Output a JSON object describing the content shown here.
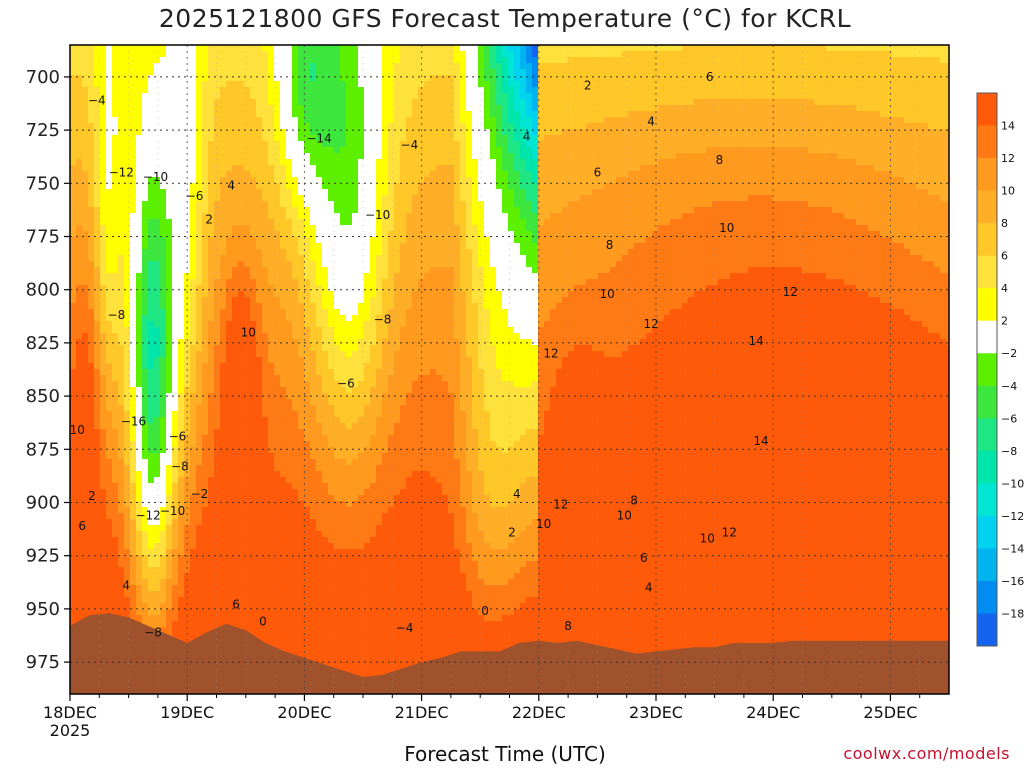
{
  "chart_data": {
    "type": "heatmap",
    "title": "2025121800 GFS Forecast Temperature (°C) for KCRL",
    "xlabel": "Forecast Time (UTC)",
    "ylabel": "",
    "credit": "coolwx.com/models",
    "x_ticks": [
      "18DEC",
      "19DEC",
      "20DEC",
      "21DEC",
      "22DEC",
      "23DEC",
      "24DEC",
      "25DEC"
    ],
    "x_sub_label": "2025",
    "xlim_hours": [
      0,
      180
    ],
    "y_ticks": [
      700,
      725,
      750,
      775,
      800,
      825,
      850,
      875,
      900,
      925,
      950,
      975
    ],
    "ylim_hpa": [
      685,
      990
    ],
    "colorbar_ticks": [
      14,
      12,
      10,
      8,
      6,
      4,
      2,
      -2,
      -4,
      -6,
      -8,
      -10,
      -12,
      -14,
      -16,
      -18
    ],
    "colorbar_levels": [
      {
        "lo": 14,
        "hi": 16,
        "color": "#ff5a0a"
      },
      {
        "lo": 12,
        "hi": 14,
        "color": "#ff7a14"
      },
      {
        "lo": 10,
        "hi": 12,
        "color": "#ff9a1e"
      },
      {
        "lo": 8,
        "hi": 10,
        "color": "#ffae28"
      },
      {
        "lo": 6,
        "hi": 8,
        "color": "#ffc828"
      },
      {
        "lo": 4,
        "hi": 6,
        "color": "#ffe13c"
      },
      {
        "lo": 2,
        "hi": 4,
        "color": "#ffff00"
      },
      {
        "lo": -2,
        "hi": 2,
        "color": "#ffffff"
      },
      {
        "lo": -4,
        "hi": -2,
        "color": "#5cf000"
      },
      {
        "lo": -6,
        "hi": -4,
        "color": "#3ce63c"
      },
      {
        "lo": -8,
        "hi": -6,
        "color": "#1ee682"
      },
      {
        "lo": -10,
        "hi": -8,
        "color": "#00e6aa"
      },
      {
        "lo": -12,
        "hi": -10,
        "color": "#00e6d2"
      },
      {
        "lo": -14,
        "hi": -12,
        "color": "#00d2f0"
      },
      {
        "lo": -16,
        "hi": -14,
        "color": "#00b4f0"
      },
      {
        "lo": -18,
        "hi": -16,
        "color": "#008cf0"
      },
      {
        "lo": -20,
        "hi": -18,
        "color": "#1464f0"
      }
    ],
    "contour_labels": [
      {
        "t": 5.5,
        "p": 711,
        "v": "-4"
      },
      {
        "t": 10.5,
        "p": 745,
        "v": "-12"
      },
      {
        "t": 17.5,
        "p": 747,
        "v": "-10"
      },
      {
        "t": 9.5,
        "p": 812,
        "v": "-8"
      },
      {
        "t": 13,
        "p": 862,
        "v": "-16"
      },
      {
        "t": 16,
        "p": 906,
        "v": "-12"
      },
      {
        "t": 17,
        "p": 961,
        "v": "-8"
      },
      {
        "t": 21,
        "p": 904,
        "v": "-10"
      },
      {
        "t": 22.5,
        "p": 883,
        "v": "-8"
      },
      {
        "t": 22,
        "p": 869,
        "v": "-6"
      },
      {
        "t": 25.5,
        "p": 756,
        "v": "-6"
      },
      {
        "t": 28.5,
        "p": 767,
        "v": "2"
      },
      {
        "t": 26.5,
        "p": 896,
        "v": "-2"
      },
      {
        "t": 33,
        "p": 751,
        "v": "4"
      },
      {
        "t": 36.5,
        "p": 820,
        "v": "10"
      },
      {
        "t": 34,
        "p": 948,
        "v": "6"
      },
      {
        "t": 39.5,
        "p": 956,
        "v": "0"
      },
      {
        "t": 4.5,
        "p": 897,
        "v": "2"
      },
      {
        "t": 2.5,
        "p": 911,
        "v": "6"
      },
      {
        "t": 1.5,
        "p": 866,
        "v": "10"
      },
      {
        "t": 11.5,
        "p": 939,
        "v": "4"
      },
      {
        "t": 51,
        "p": 729,
        "v": "-14"
      },
      {
        "t": 63,
        "p": 765,
        "v": "-10"
      },
      {
        "t": 64,
        "p": 814,
        "v": "-8"
      },
      {
        "t": 56.5,
        "p": 844,
        "v": "-6"
      },
      {
        "t": 69.5,
        "p": 732,
        "v": "-4"
      },
      {
        "t": 68.5,
        "p": 959,
        "v": "-4"
      },
      {
        "t": 85,
        "p": 951,
        "v": "0"
      },
      {
        "t": 93.5,
        "p": 728,
        "v": "4"
      },
      {
        "t": 106,
        "p": 704,
        "v": "2"
      },
      {
        "t": 108,
        "p": 745,
        "v": "6"
      },
      {
        "t": 110.5,
        "p": 779,
        "v": "8"
      },
      {
        "t": 110,
        "p": 802,
        "v": "10"
      },
      {
        "t": 98.5,
        "p": 830,
        "v": "12"
      },
      {
        "t": 119,
        "p": 721,
        "v": "4"
      },
      {
        "t": 131,
        "p": 700,
        "v": "6"
      },
      {
        "t": 133,
        "p": 739,
        "v": "8"
      },
      {
        "t": 134.5,
        "p": 771,
        "v": "10"
      },
      {
        "t": 119,
        "p": 816,
        "v": "12"
      },
      {
        "t": 147.5,
        "p": 801,
        "v": "12"
      },
      {
        "t": 140.5,
        "p": 824,
        "v": "14"
      },
      {
        "t": 141.5,
        "p": 871,
        "v": "14"
      },
      {
        "t": 91.5,
        "p": 896,
        "v": "4"
      },
      {
        "t": 90.5,
        "p": 914,
        "v": "2"
      },
      {
        "t": 97,
        "p": 910,
        "v": "10"
      },
      {
        "t": 100.5,
        "p": 901,
        "v": "12"
      },
      {
        "t": 102,
        "p": 958,
        "v": "8"
      },
      {
        "t": 113.5,
        "p": 906,
        "v": "10"
      },
      {
        "t": 115.5,
        "p": 899,
        "v": "8"
      },
      {
        "t": 117.5,
        "p": 926,
        "v": "6"
      },
      {
        "t": 118.5,
        "p": 940,
        "v": "4"
      },
      {
        "t": 130.5,
        "p": 917,
        "v": "10"
      },
      {
        "t": 135,
        "p": 914,
        "v": "12"
      }
    ]
  }
}
